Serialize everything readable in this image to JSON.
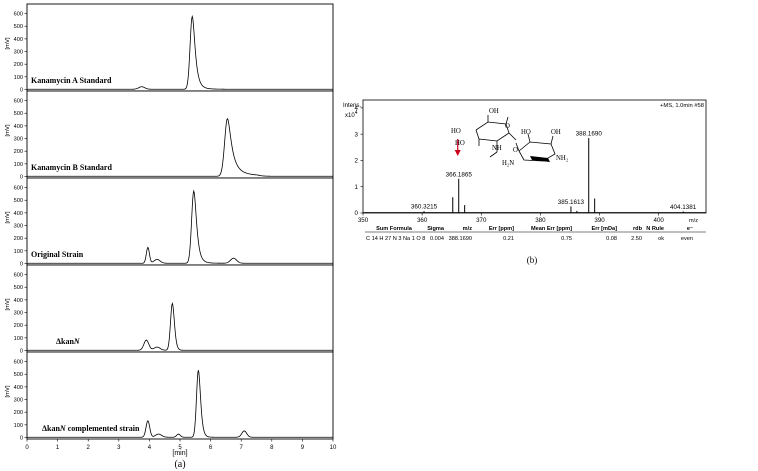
{
  "panel_a": {
    "caption": "(a)",
    "x_unit": "[min]",
    "x_ticks": [
      0,
      1,
      2,
      3,
      4,
      5,
      6,
      7,
      8,
      9,
      10
    ],
    "chart_data": [
      {
        "type": "line",
        "label": "Kanamycin A Standard",
        "ylabel": "[mV]",
        "yticks": [
          0,
          100,
          200,
          300,
          400,
          500,
          600
        ],
        "ylim": [
          0,
          640
        ],
        "xlim": [
          0,
          10
        ],
        "peaks": [
          {
            "x": 3.75,
            "y": 20,
            "w": 0.1
          },
          {
            "x": 5.4,
            "y": 575,
            "w": 0.07,
            "tail": 0.22
          }
        ]
      },
      {
        "type": "line",
        "label": "Kanamycin B Standard",
        "ylabel": "[mV]",
        "yticks": [
          0,
          100,
          200,
          300,
          400,
          500,
          600
        ],
        "ylim": [
          0,
          640
        ],
        "xlim": [
          0,
          10
        ],
        "peaks": [
          {
            "x": 6.55,
            "y": 455,
            "w": 0.09,
            "tail": 0.3
          }
        ]
      },
      {
        "type": "line",
        "label": "Original Strain",
        "ylabel": "[mV]",
        "yticks": [
          0,
          100,
          200,
          300,
          400,
          500,
          600
        ],
        "ylim": [
          0,
          640
        ],
        "xlim": [
          0,
          10
        ],
        "peaks": [
          {
            "x": 3.95,
            "y": 125,
            "w": 0.05
          },
          {
            "x": 4.25,
            "y": 30,
            "w": 0.1
          },
          {
            "x": 5.45,
            "y": 570,
            "w": 0.07,
            "tail": 0.2
          },
          {
            "x": 6.75,
            "y": 40,
            "w": 0.1
          }
        ]
      },
      {
        "type": "line",
        "label": "ΔkanN",
        "label_prefix": "Δkan",
        "label_italic": "N",
        "ylabel": "[mV]",
        "yticks": [
          0,
          100,
          200,
          300,
          400,
          500,
          600
        ],
        "ylim": [
          0,
          640
        ],
        "xlim": [
          0,
          10
        ],
        "peaks": [
          {
            "x": 3.9,
            "y": 80,
            "w": 0.08
          },
          {
            "x": 4.25,
            "y": 25,
            "w": 0.1
          },
          {
            "x": 4.75,
            "y": 370,
            "w": 0.06,
            "tail": 0.1
          }
        ]
      },
      {
        "type": "line",
        "label": "ΔkanN complemented strain",
        "label_prefix": "Δkan",
        "label_italic": "N",
        "label_suffix": " complemented strain",
        "ylabel": "[mV]",
        "yticks": [
          0,
          100,
          200,
          300,
          400,
          500,
          600
        ],
        "ylim": [
          0,
          640
        ],
        "xlim": [
          0,
          10
        ],
        "peaks": [
          {
            "x": 3.95,
            "y": 130,
            "w": 0.06
          },
          {
            "x": 4.3,
            "y": 25,
            "w": 0.1
          },
          {
            "x": 4.95,
            "y": 25,
            "w": 0.06
          },
          {
            "x": 5.6,
            "y": 530,
            "w": 0.06,
            "tail": 0.15
          },
          {
            "x": 7.1,
            "y": 50,
            "w": 0.08
          }
        ]
      }
    ]
  },
  "panel_b": {
    "caption": "(b)",
    "ylabel_line1": "Intens.",
    "ylabel_exp_base": "x10",
    "ylabel_exp": "4",
    "info": "+MS, 1.0min #58",
    "xlabel": "m/z",
    "chart_data": {
      "type": "bar",
      "xlim": [
        350,
        408
      ],
      "ylim": [
        0,
        4.3
      ],
      "x_ticks": [
        350,
        360,
        370,
        380,
        390,
        400
      ],
      "y_ticks": [
        0,
        1,
        2,
        3,
        4
      ],
      "peaks": [
        {
          "mz": 360.3215,
          "intensity": 0.07,
          "label": "360.3215"
        },
        {
          "mz": 365.177,
          "intensity": 0.6,
          "label": ""
        },
        {
          "mz": 366.1865,
          "intensity": 1.3,
          "label": "366.1865"
        },
        {
          "mz": 367.189,
          "intensity": 0.3,
          "label": ""
        },
        {
          "mz": 385.1613,
          "intensity": 0.25,
          "label": "385.1613"
        },
        {
          "mz": 386.17,
          "intensity": 0.08,
          "label": ""
        },
        {
          "mz": 388.169,
          "intensity": 2.85,
          "label": "388.1690"
        },
        {
          "mz": 389.172,
          "intensity": 0.55,
          "label": ""
        },
        {
          "mz": 404.1381,
          "intensity": 0.06,
          "label": "404.1381"
        }
      ]
    },
    "structure": {
      "atoms": [
        "HO",
        "HO",
        "OH",
        "O",
        "NH",
        "O",
        "HO",
        "OH",
        "H₂N",
        "NH₂"
      ],
      "arrow_color": "#d0021b"
    },
    "table": {
      "headers": [
        "Sum Formula",
        "Sigma",
        "m/z",
        "Err [ppm]",
        "Mean Err [ppm]",
        "Err [mDa]",
        "rdb",
        "N Rule",
        "e⁻"
      ],
      "row": [
        "C 14 H 27 N 3 Na 1 O 8",
        "0.004",
        "388.1690",
        "0.21",
        "0.75",
        "0.08",
        "2.50",
        "ok",
        "even"
      ]
    }
  }
}
